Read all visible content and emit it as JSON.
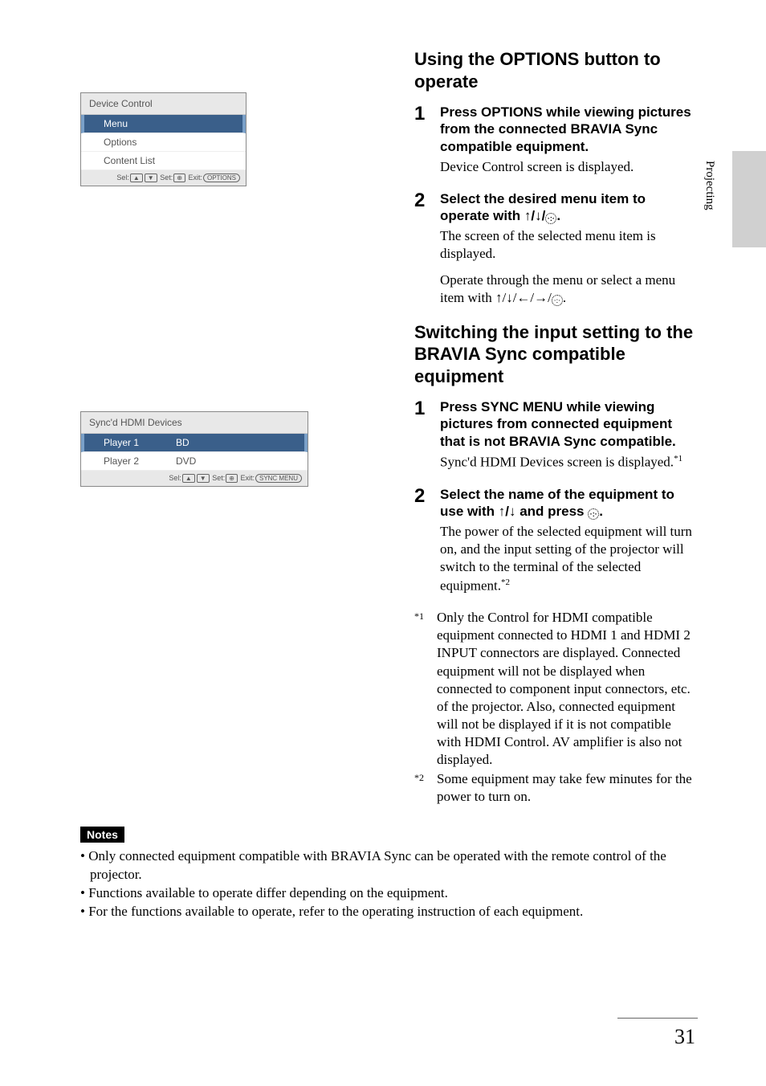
{
  "side_tab": "Projecting",
  "page_number": "31",
  "screenshot1": {
    "header": "Device Control",
    "rowSelected": "Menu",
    "row2": "Options",
    "row3": "Content List",
    "footer_sel": "Sel:",
    "footer_set": "Set:",
    "footer_exit": "Exit:",
    "footer_btn1": "▲",
    "footer_btn2": "▼",
    "footer_btn3": "⊕",
    "footer_btn4": "OPTIONS"
  },
  "screenshot2": {
    "header": "Sync'd HDMI Devices",
    "row1c1": "Player 1",
    "row1c2": "BD",
    "row2c1": "Player 2",
    "row2c2": "DVD",
    "footer_sel": "Sel:",
    "footer_set": "Set:",
    "footer_exit": "Exit:",
    "footer_btn1": "▲",
    "footer_btn2": "▼",
    "footer_btn3": "⊕",
    "footer_btn4": "SYNC MENU"
  },
  "section1": {
    "heading": "Using the OPTIONS button to operate",
    "step1_title": "Press OPTIONS while viewing pictures from the connected BRAVIA Sync compatible equipment.",
    "step1_text": "Device Control screen is displayed.",
    "step2_title_a": "Select the desired menu item to operate with ",
    "step2_title_b": ".",
    "step2_text1": "The screen of the selected menu item is displayed.",
    "step2_text2a": "Operate through the menu or select a menu item with ",
    "step2_text2b": "."
  },
  "section2": {
    "heading": "Switching the input setting to the BRAVIA Sync compatible equipment",
    "step1_title": "Press SYNC MENU while viewing pictures from connected equipment that is not BRAVIA Sync compatible.",
    "step1_text_a": "Sync'd HDMI Devices screen is displayed.",
    "step1_sup": "*1",
    "step2_title_a": "Select the name of the equipment to use with ",
    "step2_title_b": " and press ",
    "step2_title_c": ".",
    "step2_text_a": "The power of the selected equipment will turn on, and the input setting of the projector will switch to the terminal of the selected equipment.",
    "step2_sup": "*2"
  },
  "footnotes": {
    "f1_mark": "*1",
    "f1_text": "Only the Control for HDMI compatible equipment connected to HDMI 1 and HDMI 2 INPUT connectors are displayed. Connected equipment will not be displayed when connected to component input connectors, etc. of the projector. Also, connected equipment will not be displayed if it is not compatible with HDMI Control. AV amplifier is also not displayed.",
    "f2_mark": "*2",
    "f2_text": "Some equipment may take few minutes for the power to turn on."
  },
  "notes": {
    "label": "Notes",
    "n1": "Only connected equipment compatible with BRAVIA Sync can be operated with the remote control of the projector.",
    "n2": "Functions available to operate differ depending on the equipment.",
    "n3": "For the functions available to operate, refer to the operating instruction of each equipment."
  },
  "glyphs": {
    "up": "↑",
    "down": "↓",
    "left": "←",
    "right": "→",
    "slash": "/",
    "enter": "·:·"
  }
}
